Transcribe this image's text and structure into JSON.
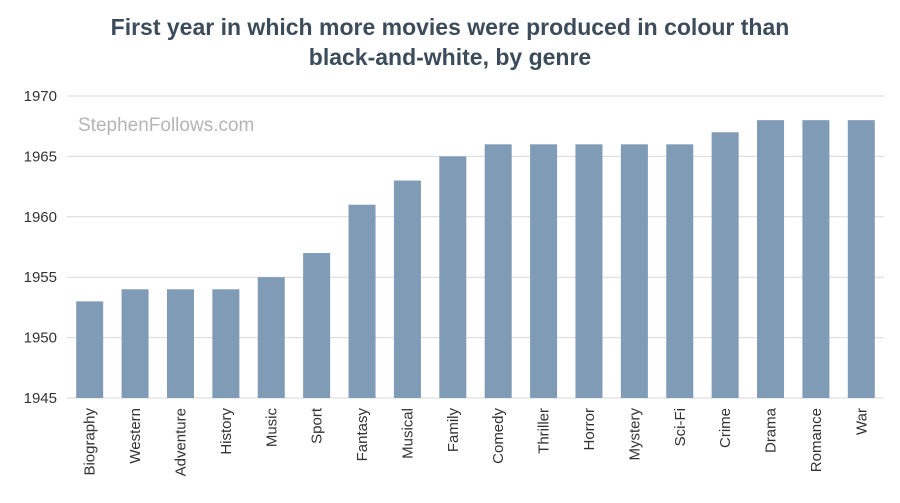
{
  "colors": {
    "bar": "#7f9bb5",
    "grid": "#d9d9d9",
    "title": "#3d4c5a",
    "watermark": "#b5b5b5"
  },
  "watermark": "StephenFollows.com",
  "chart_data": {
    "type": "bar",
    "title_lines": [
      "First year in which more movies were produced in colour than",
      "black-and-white, by genre"
    ],
    "xlabel": "",
    "ylabel": "",
    "ylim": [
      1945,
      1970
    ],
    "yticks": [
      1945,
      1950,
      1955,
      1960,
      1965,
      1970
    ],
    "grid": true,
    "categories": [
      "Biography",
      "Western",
      "Adventure",
      "History",
      "Music",
      "Sport",
      "Fantasy",
      "Musical",
      "Family",
      "Comedy",
      "Thriller",
      "Horror",
      "Mystery",
      "Sci-Fi",
      "Crime",
      "Drama",
      "Romance",
      "War"
    ],
    "values": [
      1953,
      1954,
      1954,
      1954,
      1955,
      1957,
      1961,
      1963,
      1965,
      1966,
      1966,
      1966,
      1966,
      1966,
      1967,
      1968,
      1968,
      1968
    ]
  }
}
